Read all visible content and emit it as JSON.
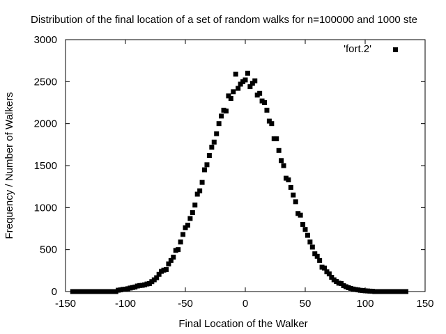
{
  "chart_data": {
    "type": "scatter",
    "title": "Distribution of the final location of a set of random walks for n=100000 and 1000 ste",
    "xlabel": "Final Location of the Walker",
    "ylabel": "Frequency / Number of Walkers",
    "xlim": [
      -150,
      150
    ],
    "ylim": [
      0,
      3000
    ],
    "xticks": [
      -150,
      -100,
      -50,
      0,
      50,
      100,
      150
    ],
    "yticks": [
      0,
      500,
      1000,
      1500,
      2000,
      2500,
      3000
    ],
    "xtick_labels": [
      "-150",
      "-100",
      "-50",
      "0",
      "50",
      "100",
      "150"
    ],
    "ytick_labels": [
      "0",
      "500",
      "1000",
      "1500",
      "2000",
      "2500",
      "3000"
    ],
    "grid": false,
    "legend_position": "top-right",
    "marker": "square",
    "marker_color": "#000000",
    "series": [
      {
        "name": "'fort.2'",
        "points": [
          [
            -106,
            16
          ],
          [
            -104,
            20
          ],
          [
            -102,
            26
          ],
          [
            -100,
            28
          ],
          [
            -98,
            34
          ],
          [
            -96,
            42
          ],
          [
            -94,
            48
          ],
          [
            -92,
            54
          ],
          [
            -90,
            66
          ],
          [
            -88,
            72
          ],
          [
            -86,
            74
          ],
          [
            -84,
            80
          ],
          [
            -82,
            90
          ],
          [
            -80,
            96
          ],
          [
            -78,
            118
          ],
          [
            -76,
            140
          ],
          [
            -74,
            165
          ],
          [
            -72,
            205
          ],
          [
            -70,
            240
          ],
          [
            -68,
            255
          ],
          [
            -66,
            262
          ],
          [
            -64,
            330
          ],
          [
            -62,
            370
          ],
          [
            -60,
            410
          ],
          [
            -58,
            490
          ],
          [
            -56,
            500
          ],
          [
            -54,
            590
          ],
          [
            -52,
            680
          ],
          [
            -50,
            760
          ],
          [
            -48,
            790
          ],
          [
            -46,
            870
          ],
          [
            -44,
            940
          ],
          [
            -42,
            1030
          ],
          [
            -40,
            1160
          ],
          [
            -38,
            1200
          ],
          [
            -36,
            1300
          ],
          [
            -34,
            1450
          ],
          [
            -32,
            1510
          ],
          [
            -30,
            1620
          ],
          [
            -28,
            1720
          ],
          [
            -26,
            1780
          ],
          [
            -24,
            1880
          ],
          [
            -22,
            2000
          ],
          [
            -20,
            2090
          ],
          [
            -18,
            2160
          ],
          [
            -16,
            2150
          ],
          [
            -14,
            2330
          ],
          [
            -12,
            2300
          ],
          [
            -10,
            2380
          ],
          [
            -8,
            2590
          ],
          [
            -6,
            2420
          ],
          [
            -4,
            2470
          ],
          [
            -2,
            2500
          ],
          [
            0,
            2520
          ],
          [
            2,
            2600
          ],
          [
            4,
            2440
          ],
          [
            6,
            2480
          ],
          [
            8,
            2510
          ],
          [
            10,
            2340
          ],
          [
            12,
            2360
          ],
          [
            14,
            2270
          ],
          [
            16,
            2250
          ],
          [
            18,
            2160
          ],
          [
            20,
            2030
          ],
          [
            22,
            2000
          ],
          [
            24,
            1820
          ],
          [
            26,
            1820
          ],
          [
            28,
            1680
          ],
          [
            30,
            1560
          ],
          [
            32,
            1500
          ],
          [
            34,
            1350
          ],
          [
            36,
            1330
          ],
          [
            38,
            1240
          ],
          [
            40,
            1150
          ],
          [
            42,
            1070
          ],
          [
            44,
            930
          ],
          [
            46,
            910
          ],
          [
            48,
            800
          ],
          [
            50,
            740
          ],
          [
            52,
            670
          ],
          [
            54,
            590
          ],
          [
            56,
            530
          ],
          [
            58,
            450
          ],
          [
            60,
            420
          ],
          [
            62,
            370
          ],
          [
            64,
            290
          ],
          [
            66,
            280
          ],
          [
            68,
            235
          ],
          [
            70,
            210
          ],
          [
            72,
            170
          ],
          [
            74,
            140
          ],
          [
            76,
            120
          ],
          [
            78,
            100
          ],
          [
            80,
            95
          ],
          [
            82,
            70
          ],
          [
            84,
            58
          ],
          [
            86,
            46
          ],
          [
            88,
            38
          ],
          [
            90,
            30
          ],
          [
            92,
            24
          ],
          [
            94,
            20
          ],
          [
            96,
            15
          ],
          [
            98,
            12
          ],
          [
            100,
            9
          ],
          [
            102,
            7
          ],
          [
            104,
            5
          ],
          [
            106,
            4
          ]
        ]
      }
    ]
  }
}
